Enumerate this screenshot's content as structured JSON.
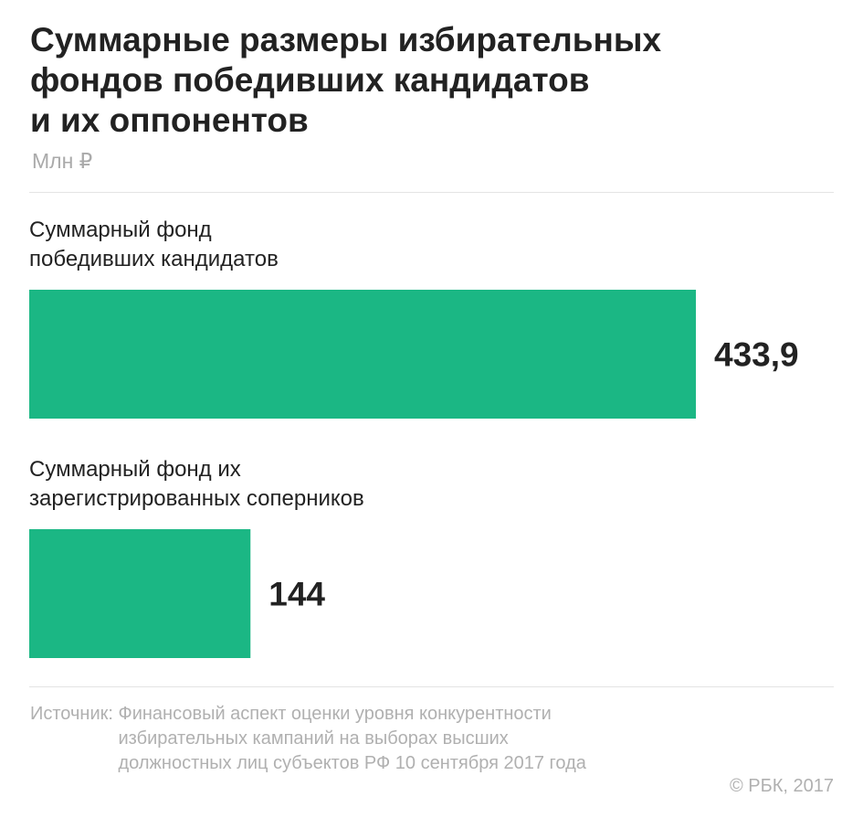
{
  "header": {
    "title_lines": [
      "Суммарные размеры избирательных",
      "фондов победивших кандидатов",
      "и их оппонентов"
    ],
    "unit": "Млн ₽"
  },
  "chart_data": {
    "type": "bar",
    "orientation": "horizontal",
    "title": "Суммарные размеры избирательных фондов победивших кандидатов и их оппонентов",
    "unit": "Млн ₽",
    "categories": [
      "Суммарный фонд победивших кандидатов",
      "Суммарный фонд их зарегистрированных соперников"
    ],
    "category_label_lines": [
      [
        "Суммарный фонд",
        "победивших кандидатов"
      ],
      [
        "Суммарный фонд их",
        "зарегистрированных соперников"
      ]
    ],
    "values": [
      433.9,
      144
    ],
    "value_labels": [
      "433,9",
      "144"
    ],
    "bar_color": "#1bb784",
    "xlim": [
      0,
      433.9
    ],
    "grid": false,
    "legend": "none"
  },
  "footer": {
    "source_label": "Источник:",
    "source_lines": [
      "Финансовый аспект оценки уровня конкурентности",
      "избирательных кампаний на выборах высших",
      "должностных лиц субъектов РФ 10 сентября 2017 года"
    ],
    "copyright": "© РБК, 2017"
  }
}
